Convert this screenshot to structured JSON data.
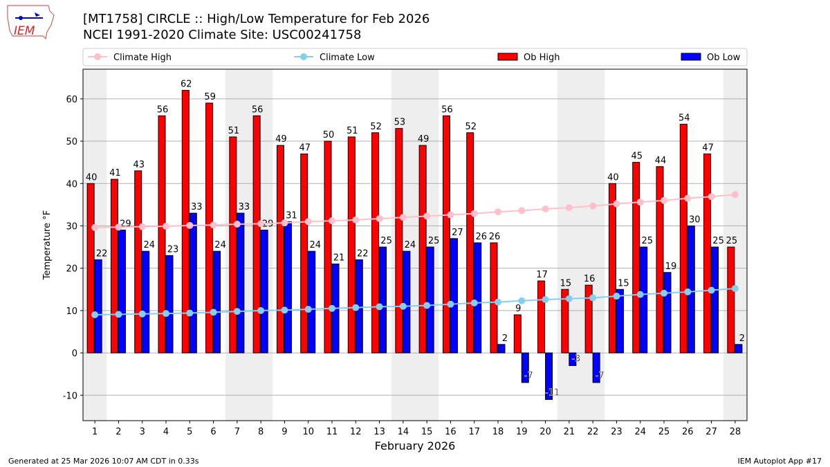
{
  "logo_text": "IEM",
  "title_line1": "[MT1758] CIRCLE :: High/Low Temperature for Feb 2026",
  "title_line2": "NCEI 1991-2020 Climate Site: USC00241758",
  "footer_left": "Generated at 25 Mar 2026 10:07 AM CDT in 0.33s",
  "footer_right": "IEM Autoplot App #17",
  "colors": {
    "ob_high": "#ff0000",
    "ob_low": "#0000ff",
    "climate_high": "#ffc0cb",
    "climate_low": "#87ceeb",
    "weekend": "#eeeeee"
  },
  "chart_data": {
    "type": "bar",
    "xlabel": "February 2026",
    "ylabel": "Temperature °F",
    "ylim": [
      -16,
      67
    ],
    "yticks": [
      -10,
      0,
      10,
      20,
      30,
      40,
      50,
      60
    ],
    "grid": true,
    "legend_placement": "top",
    "legend": [
      "Climate High",
      "Climate Low",
      "Ob High",
      "Ob Low"
    ],
    "categories": [
      "1",
      "2",
      "3",
      "4",
      "5",
      "6",
      "7",
      "8",
      "9",
      "10",
      "11",
      "12",
      "13",
      "14",
      "15",
      "16",
      "17",
      "18",
      "19",
      "20",
      "21",
      "22",
      "23",
      "24",
      "25",
      "26",
      "27",
      "28"
    ],
    "weekend_days": [
      1,
      7,
      8,
      14,
      15,
      21,
      22,
      28
    ],
    "series": [
      {
        "name": "Ob High",
        "type": "bar",
        "values": [
          40,
          41,
          43,
          56,
          62,
          59,
          51,
          56,
          49,
          47,
          50,
          51,
          52,
          53,
          49,
          56,
          52,
          26,
          9,
          17,
          15,
          16,
          40,
          45,
          44,
          54,
          47,
          25
        ]
      },
      {
        "name": "Ob Low",
        "type": "bar",
        "values": [
          22,
          29,
          24,
          23,
          33,
          24,
          33,
          29,
          31,
          24,
          21,
          22,
          25,
          24,
          25,
          27,
          26,
          2,
          -7,
          -11,
          -3,
          -7,
          15,
          25,
          19,
          30,
          25,
          2
        ]
      },
      {
        "name": "Climate High",
        "type": "line",
        "values": [
          29.6,
          29.7,
          29.8,
          29.9,
          30.1,
          30.2,
          30.4,
          30.5,
          30.7,
          31.0,
          31.2,
          31.4,
          31.7,
          32.0,
          32.3,
          32.6,
          32.9,
          33.3,
          33.6,
          34.0,
          34.3,
          34.7,
          35.2,
          35.6,
          36.0,
          36.5,
          36.9,
          37.4
        ]
      },
      {
        "name": "Climate Low",
        "type": "line",
        "values": [
          9.0,
          9.1,
          9.2,
          9.3,
          9.4,
          9.6,
          9.8,
          10.0,
          10.1,
          10.3,
          10.5,
          10.7,
          10.9,
          11.0,
          11.2,
          11.5,
          11.8,
          12.0,
          12.3,
          12.6,
          12.8,
          13.0,
          13.4,
          13.8,
          14.1,
          14.4,
          14.8,
          15.2
        ]
      }
    ]
  }
}
